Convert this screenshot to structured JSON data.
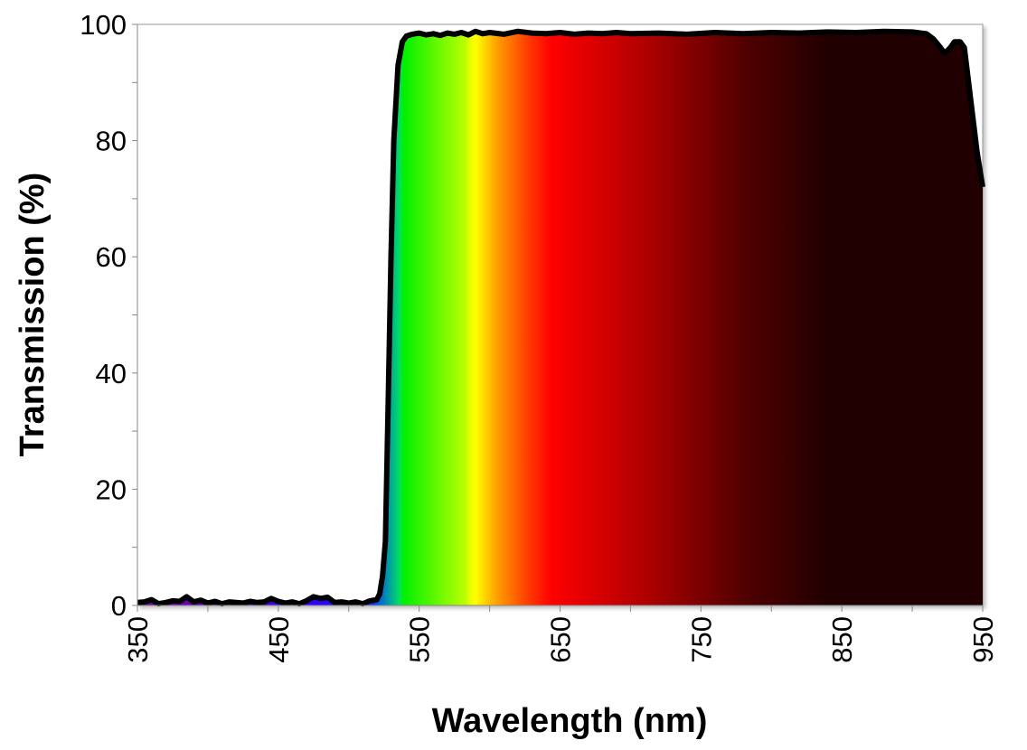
{
  "chart_data": {
    "type": "area",
    "title": "",
    "xlabel": "Wavelength (nm)",
    "ylabel": "Transmission (%)",
    "xlim": [
      350,
      950
    ],
    "ylim": [
      0,
      100
    ],
    "xticks": [
      350,
      450,
      550,
      650,
      750,
      850,
      950
    ],
    "yticks": [
      0,
      20,
      40,
      60,
      80,
      100
    ],
    "grid": false,
    "legend": "none",
    "fill": "visible-spectrum gradient under curve",
    "line_color": "#000000",
    "series": [
      {
        "x": [
          350,
          355,
          360,
          365,
          370,
          375,
          380,
          385,
          390,
          395,
          400,
          405,
          410,
          415,
          420,
          425,
          430,
          435,
          440,
          445,
          450,
          455,
          460,
          465,
          470,
          475,
          480,
          485,
          490,
          495,
          500,
          505,
          510,
          515,
          520,
          522,
          524,
          526,
          528,
          530,
          532,
          535,
          538,
          541,
          545,
          550,
          555,
          560,
          565,
          570,
          575,
          580,
          585,
          590,
          595,
          600,
          610,
          620,
          630,
          640,
          650,
          660,
          670,
          680,
          690,
          700,
          720,
          740,
          760,
          780,
          800,
          820,
          840,
          860,
          880,
          900,
          910,
          915,
          920,
          923,
          927,
          930,
          934,
          937,
          940,
          943,
          946,
          950
        ],
        "y": [
          0.5,
          0.6,
          1.0,
          0.3,
          0.5,
          0.8,
          0.7,
          1.5,
          0.6,
          0.9,
          0.4,
          0.7,
          0.3,
          0.6,
          0.5,
          0.4,
          0.7,
          0.5,
          0.6,
          1.2,
          0.7,
          0.4,
          0.6,
          0.3,
          0.8,
          1.5,
          1.2,
          1.4,
          0.5,
          0.6,
          0.4,
          0.6,
          0.3,
          0.8,
          1.0,
          2.0,
          5,
          11,
          35,
          60,
          80,
          93,
          97,
          98,
          98.3,
          98.5,
          98.2,
          98.4,
          98.1,
          98.5,
          98.3,
          98.6,
          98.2,
          98.8,
          98.4,
          98.6,
          98.3,
          98.8,
          98.5,
          98.4,
          98.6,
          98.3,
          98.5,
          98.4,
          98.6,
          98.4,
          98.5,
          98.3,
          98.6,
          98.4,
          98.6,
          98.5,
          98.7,
          98.6,
          98.8,
          98.7,
          98.4,
          97.5,
          96,
          95,
          96,
          97,
          97,
          96,
          90,
          84,
          78,
          72
        ]
      }
    ]
  }
}
